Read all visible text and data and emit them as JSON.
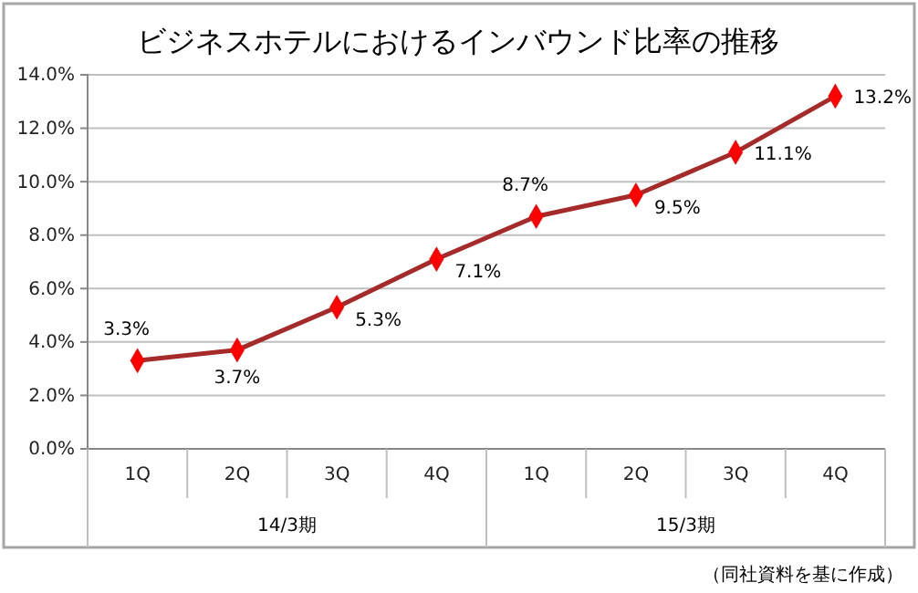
{
  "chart_data": {
    "type": "line",
    "title": "ビジネスホテルにおけるインバウンド比率の推移",
    "categories": [
      "1Q",
      "2Q",
      "3Q",
      "4Q",
      "1Q",
      "2Q",
      "3Q",
      "4Q"
    ],
    "series": [
      {
        "color": "#a52a2a",
        "values": [
          3.3,
          3.7,
          5.3,
          7.1,
          8.7,
          9.5,
          11.1,
          13.2
        ],
        "value_labels": [
          "3.3%",
          "3.7%",
          "5.3%",
          "7.1%",
          "8.7%",
          "9.5%",
          "11.1%",
          "13.2%"
        ]
      }
    ],
    "ylim": [
      0,
      14
    ],
    "yticks": [
      {
        "value": 0,
        "label": "0.0%"
      },
      {
        "value": 2,
        "label": "2.0%"
      },
      {
        "value": 4,
        "label": "4.0%"
      },
      {
        "value": 6,
        "label": "6.0%"
      },
      {
        "value": 8,
        "label": "8.0%"
      },
      {
        "value": 10,
        "label": "10.0%"
      },
      {
        "value": 12,
        "label": "12.0%"
      },
      {
        "value": 14,
        "label": "14.0%"
      }
    ],
    "grid": "y",
    "marker": "diamond",
    "line_style": "solid",
    "annotations": [
      "14/3期",
      "15/3期",
      "（同社資料を基に作成）"
    ]
  }
}
